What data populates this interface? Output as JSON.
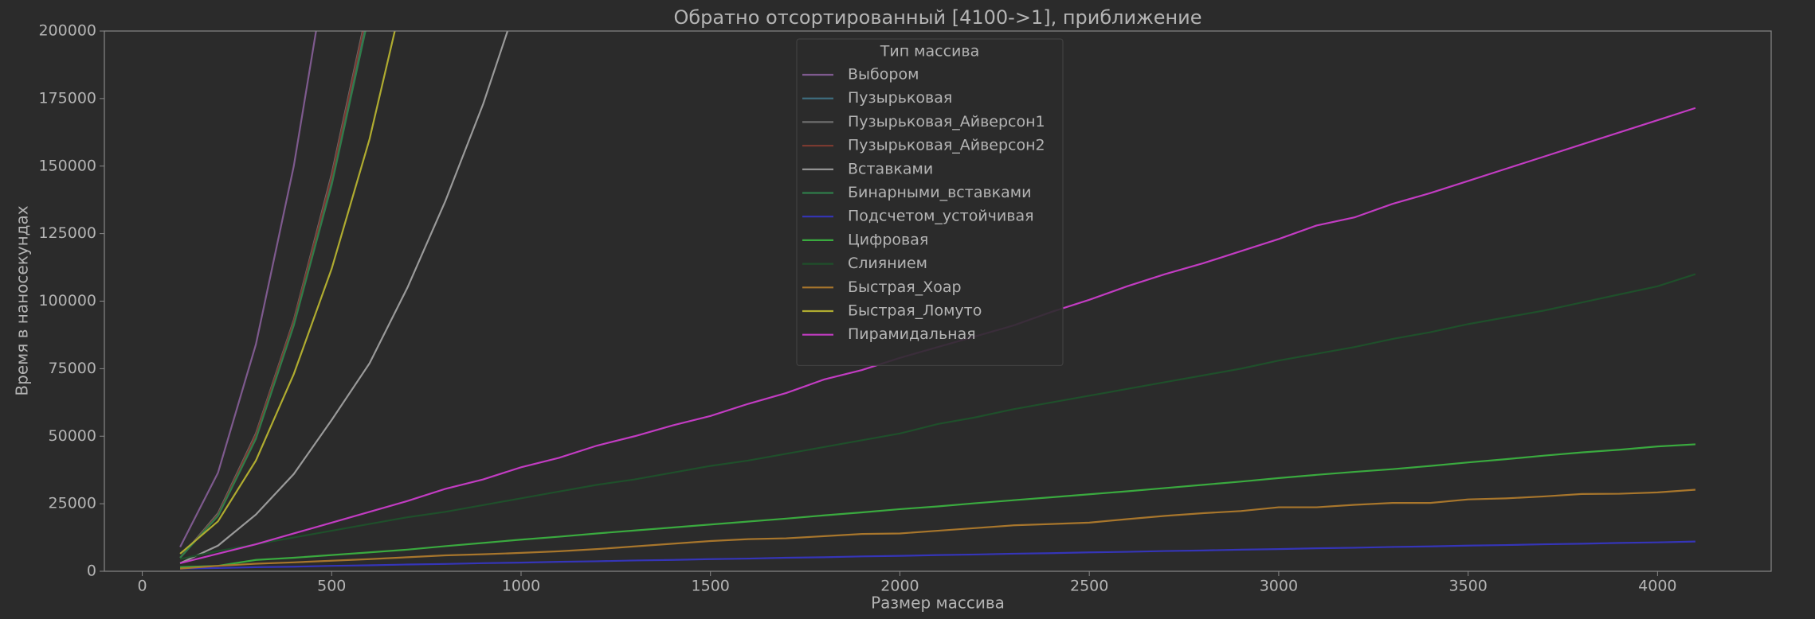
{
  "chart_data": {
    "type": "line",
    "title": "Обратно отсортированный [4100->1], приближение",
    "xlabel": "Размер массива",
    "ylabel": "Время в наносекундах",
    "x": [
      100,
      200,
      300,
      400,
      500,
      600,
      700,
      800,
      900,
      1000,
      1100,
      1200,
      1300,
      1400,
      1500,
      1600,
      1700,
      1800,
      1900,
      2000,
      2100,
      2200,
      2300,
      2400,
      2500,
      2600,
      2700,
      2800,
      2900,
      3000,
      3100,
      3200,
      3300,
      3400,
      3500,
      3600,
      3700,
      3800,
      3900,
      4000,
      4100
    ],
    "xlim": [
      -100,
      4300
    ],
    "xticks": [
      0,
      500,
      1000,
      1500,
      2000,
      2500,
      3000,
      3500,
      4000
    ],
    "ylim": [
      0,
      200000
    ],
    "yticks": [
      0,
      25000,
      50000,
      75000,
      100000,
      125000,
      150000,
      175000,
      200000
    ],
    "legend": {
      "title": "Тип массива",
      "loc": "upper center"
    },
    "series": [
      {
        "name": "Выбором",
        "color": "#7e5a8e",
        "values": [
          9000,
          36500,
          84000,
          150000,
          235000,
          null,
          null,
          null,
          null,
          null,
          null,
          null,
          null,
          null,
          null,
          null,
          null,
          null,
          null,
          null,
          null,
          null,
          null,
          null,
          null,
          null,
          null,
          null,
          null,
          null,
          null,
          null,
          null,
          null,
          null,
          null,
          null,
          null,
          null,
          null,
          null
        ]
      },
      {
        "name": "Пузырьковая",
        "color": "#3f6f82",
        "values": [
          5000,
          21000,
          50000,
          92000,
          145000,
          210000,
          null,
          null,
          null,
          null,
          null,
          null,
          null,
          null,
          null,
          null,
          null,
          null,
          null,
          null,
          null,
          null,
          null,
          null,
          null,
          null,
          null,
          null,
          null,
          null,
          null,
          null,
          null,
          null,
          null,
          null,
          null,
          null,
          null,
          null,
          null
        ]
      },
      {
        "name": "Пузырьковая_Айверсон1",
        "color": "#6e6e6e",
        "values": [
          5000,
          21500,
          51000,
          93000,
          147000,
          212000,
          null,
          null,
          null,
          null,
          null,
          null,
          null,
          null,
          null,
          null,
          null,
          null,
          null,
          null,
          null,
          null,
          null,
          null,
          null,
          null,
          null,
          null,
          null,
          null,
          null,
          null,
          null,
          null,
          null,
          null,
          null,
          null,
          null,
          null,
          null
        ]
      },
      {
        "name": "Пузырьковая_Айверсон2",
        "color": "#7a3a30",
        "values": [
          5000,
          21000,
          50500,
          92500,
          146000,
          211000,
          null,
          null,
          null,
          null,
          null,
          null,
          null,
          null,
          null,
          null,
          null,
          null,
          null,
          null,
          null,
          null,
          null,
          null,
          null,
          null,
          null,
          null,
          null,
          null,
          null,
          null,
          null,
          null,
          null,
          null,
          null,
          null,
          null,
          null,
          null
        ]
      },
      {
        "name": "Вставками",
        "color": "#9a9a9a",
        "values": [
          3000,
          9500,
          21000,
          36000,
          56000,
          77000,
          105000,
          137000,
          173000,
          215000,
          null,
          null,
          null,
          null,
          null,
          null,
          null,
          null,
          null,
          null,
          null,
          null,
          null,
          null,
          null,
          null,
          null,
          null,
          null,
          null,
          null,
          null,
          null,
          null,
          null,
          null,
          null,
          null,
          null,
          null,
          null
        ]
      },
      {
        "name": "Бинарными_вставками",
        "color": "#2f7d4a",
        "values": [
          5000,
          20500,
          49000,
          91000,
          143000,
          207000,
          null,
          null,
          null,
          null,
          null,
          null,
          null,
          null,
          null,
          null,
          null,
          null,
          null,
          null,
          null,
          null,
          null,
          null,
          null,
          null,
          null,
          null,
          null,
          null,
          null,
          null,
          null,
          null,
          null,
          null,
          null,
          null,
          null,
          null,
          null
        ]
      },
      {
        "name": "Подсчетом_устойчивая",
        "color": "#3535b8",
        "values": [
          1000,
          1200,
          1500,
          1700,
          2000,
          2200,
          2500,
          2700,
          3000,
          3200,
          3500,
          3700,
          4000,
          4200,
          4500,
          4700,
          5000,
          5200,
          5500,
          5700,
          6000,
          6200,
          6500,
          6700,
          7000,
          7200,
          7500,
          7700,
          8000,
          8200,
          8500,
          8700,
          9000,
          9200,
          9500,
          9700,
          10000,
          10200,
          10500,
          10700,
          11000
        ]
      },
      {
        "name": "Цифровая",
        "color": "#3aaa3f",
        "values": [
          1500,
          2000,
          4200,
          5000,
          6000,
          7000,
          8000,
          9300,
          10500,
          11700,
          12800,
          14000,
          15100,
          16200,
          17300,
          18400,
          19500,
          20700,
          21800,
          23000,
          24000,
          25200,
          26300,
          27400,
          28500,
          29600,
          30800,
          32000,
          33200,
          34500,
          35700,
          36800,
          37800,
          39000,
          40300,
          41500,
          42800,
          44000,
          45000,
          46200,
          47000
        ]
      },
      {
        "name": "Слиянием",
        "color": "#1f4f2b",
        "values": [
          4500,
          7500,
          10000,
          12500,
          15000,
          17500,
          20000,
          22000,
          24500,
          27000,
          29500,
          32000,
          34000,
          36500,
          39000,
          41000,
          43500,
          46000,
          48500,
          51000,
          54500,
          57000,
          60000,
          62500,
          65000,
          67500,
          70000,
          72500,
          75000,
          78000,
          80500,
          83000,
          86000,
          88500,
          91500,
          94000,
          96500,
          99500,
          102500,
          105500,
          110000
        ]
      },
      {
        "name": "Быстрая_Хоар",
        "color": "#a8762c",
        "values": [
          1000,
          2000,
          2800,
          3300,
          3900,
          4500,
          5200,
          5900,
          6300,
          6800,
          7400,
          8200,
          9200,
          10200,
          11200,
          11900,
          12200,
          13000,
          13800,
          14000,
          15000,
          16000,
          17000,
          17500,
          18000,
          19300,
          20500,
          21500,
          22300,
          23700,
          23700,
          24600,
          25300,
          25300,
          26600,
          27000,
          27700,
          28600,
          28700,
          29200,
          30200
        ]
      },
      {
        "name": "Быстрая_Ломуто",
        "color": "#b0ac30",
        "values": [
          6500,
          18500,
          41000,
          73000,
          112000,
          160000,
          220000,
          null,
          null,
          null,
          null,
          null,
          null,
          null,
          null,
          null,
          null,
          null,
          null,
          null,
          null,
          null,
          null,
          null,
          null,
          null,
          null,
          null,
          null,
          null,
          null,
          null,
          null,
          null,
          null,
          null,
          null,
          null,
          null,
          null,
          null
        ]
      },
      {
        "name": "Пирамидальная",
        "color": "#c23cc2",
        "values": [
          3000,
          6500,
          10000,
          14000,
          18000,
          22000,
          26000,
          30500,
          34000,
          38500,
          42000,
          46500,
          50000,
          54000,
          57500,
          62000,
          66000,
          71000,
          74500,
          79000,
          83000,
          87000,
          91000,
          96000,
          100500,
          105500,
          110000,
          114000,
          118500,
          123000,
          128000,
          131000,
          136000,
          140000,
          144500,
          149000,
          153500,
          158000,
          162500,
          167000,
          171500
        ]
      }
    ]
  }
}
